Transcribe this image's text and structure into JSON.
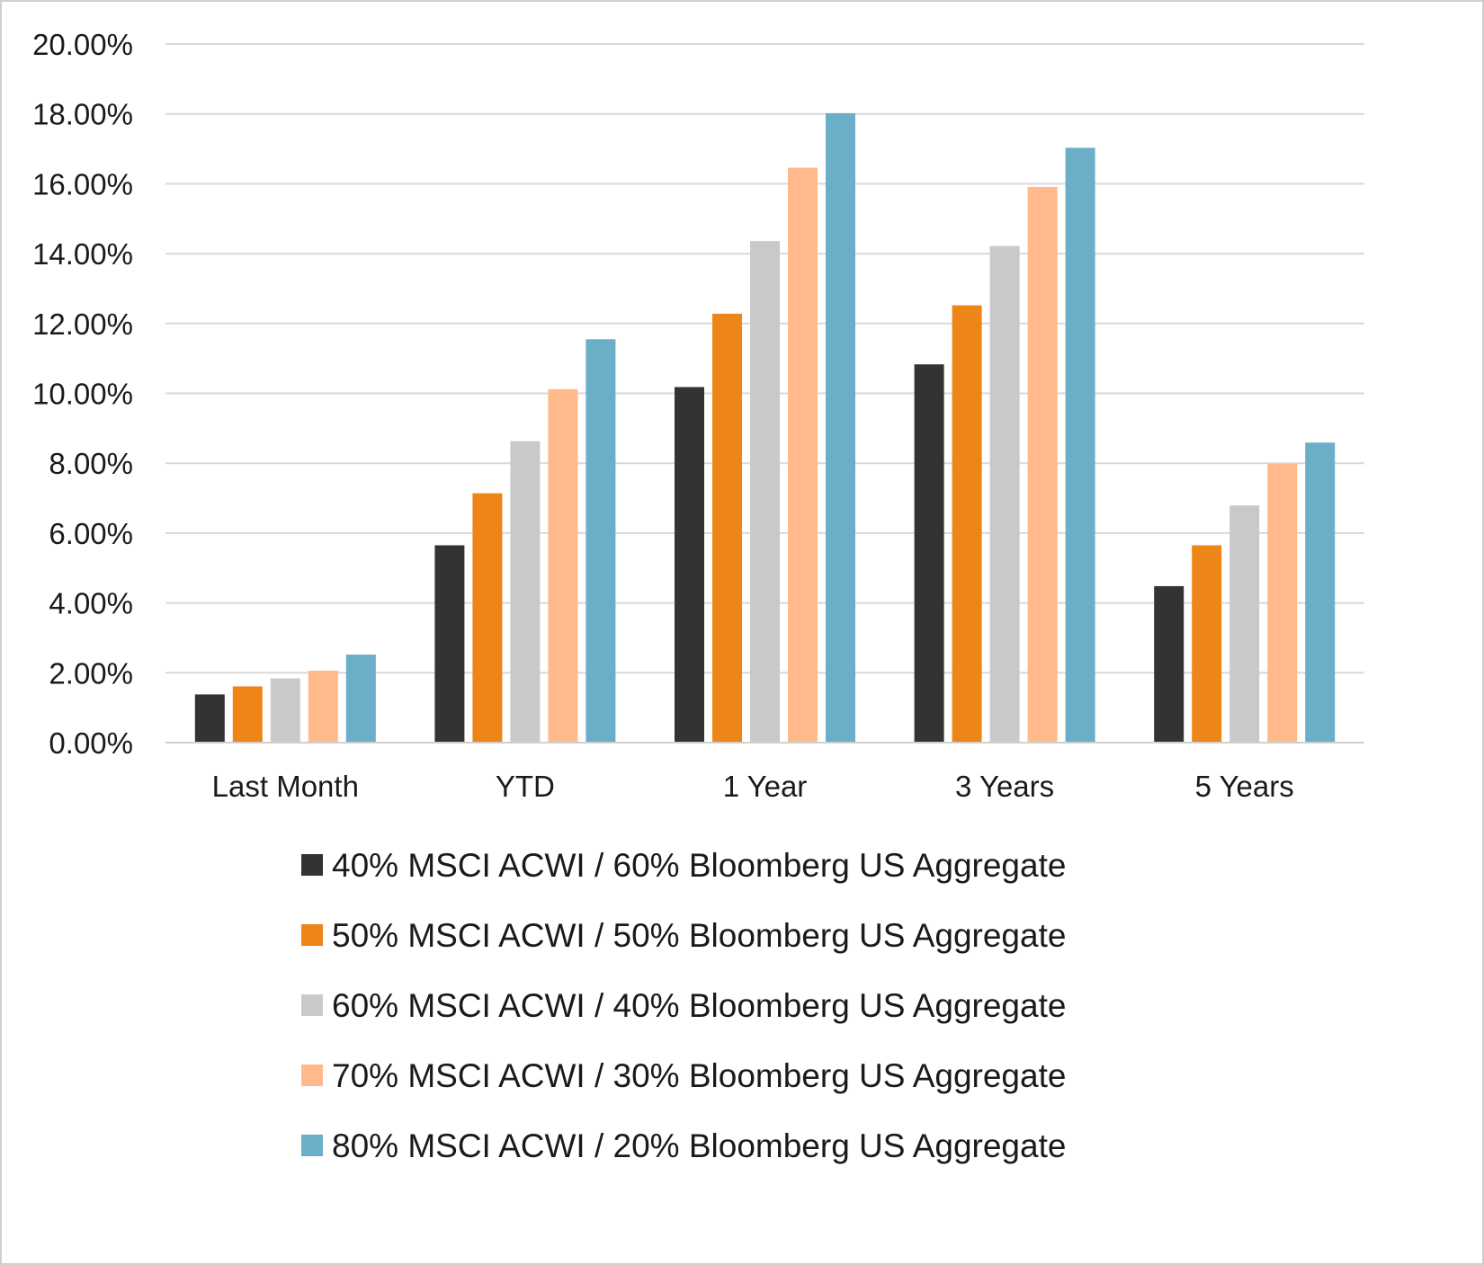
{
  "chart_data": {
    "type": "bar",
    "title": "",
    "xlabel": "",
    "ylabel": "",
    "categories": [
      "Last Month",
      "YTD",
      "1 Year",
      "3 Years",
      "5 Years"
    ],
    "ylim": [
      0,
      20
    ],
    "yticks": [
      "0.00%",
      "2.00%",
      "4.00%",
      "6.00%",
      "8.00%",
      "10.00%",
      "12.00%",
      "14.00%",
      "16.00%",
      "18.00%",
      "20.00%"
    ],
    "grid": true,
    "legend_position": "bottom",
    "series": [
      {
        "name": "40% MSCI ACWI / 60% Bloomberg US Aggregate",
        "color": "#333333",
        "values": [
          1.38,
          5.65,
          10.18,
          10.83,
          4.48
        ]
      },
      {
        "name": "50% MSCI ACWI / 50% Bloomberg US Aggregate",
        "color": "#ed8519",
        "values": [
          1.61,
          7.14,
          12.28,
          12.52,
          5.65
        ]
      },
      {
        "name": "60% MSCI ACWI / 40% Bloomberg US Aggregate",
        "color": "#c9c9cb",
        "values": [
          1.84,
          8.63,
          14.36,
          14.22,
          6.79
        ]
      },
      {
        "name": "70% MSCI ACWI / 30% Bloomberg US Aggregate",
        "color": "#ffb98a",
        "values": [
          2.06,
          10.12,
          16.46,
          15.91,
          7.98
        ]
      },
      {
        "name": "80% MSCI ACWI / 20% Bloomberg US Aggregate",
        "color": "#6aaec8",
        "values": [
          2.52,
          11.55,
          18.02,
          17.03,
          8.59
        ]
      }
    ]
  }
}
